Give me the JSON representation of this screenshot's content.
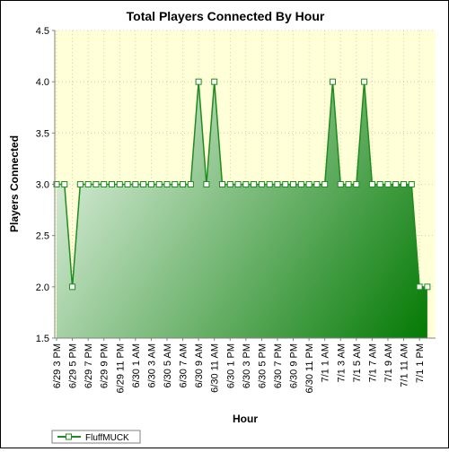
{
  "chart_data": {
    "type": "area",
    "title": "Total Players Connected By Hour",
    "xlabel": "Hour",
    "ylabel": "Players Connected",
    "ylim": [
      1.5,
      4.5
    ],
    "y_ticks": [
      "1.5",
      "2.0",
      "2.5",
      "3.0",
      "3.5",
      "4.0",
      "4.5"
    ],
    "x_tick_labels": [
      "6/29 3 PM",
      "6/29 5 PM",
      "6/29 7 PM",
      "6/29 9 PM",
      "6/29 11 PM",
      "6/30 1 AM",
      "6/30 3 AM",
      "6/30 5 AM",
      "6/30 7 AM",
      "6/30 9 AM",
      "6/30 11 AM",
      "6/30 1 PM",
      "6/30 3 PM",
      "6/30 5 PM",
      "6/30 7 PM",
      "6/30 9 PM",
      "6/30 11 PM",
      "7/1 1 AM",
      "7/1 3 AM",
      "7/1 5 AM",
      "7/1 7 AM",
      "7/1 9 AM",
      "7/1 11 AM",
      "7/1 1 PM"
    ],
    "series": [
      {
        "name": "FluffMUCK",
        "values": [
          3,
          3,
          2,
          3,
          3,
          3,
          3,
          3,
          3,
          3,
          3,
          3,
          3,
          3,
          3,
          3,
          3,
          3,
          4,
          3,
          4,
          3,
          3,
          3,
          3,
          3,
          3,
          3,
          3,
          3,
          3,
          3,
          3,
          3,
          3,
          4,
          3,
          3,
          3,
          4,
          3,
          3,
          3,
          3,
          3,
          3,
          2,
          2
        ]
      }
    ],
    "grid": true,
    "legend_position": "bottom-left",
    "colors": {
      "plot_background": "#ffffd8",
      "series_line": "#1e8c1e",
      "area_light": "#f2faf2",
      "area_dark": "#007800",
      "marker_fill": "#ffffff"
    }
  }
}
